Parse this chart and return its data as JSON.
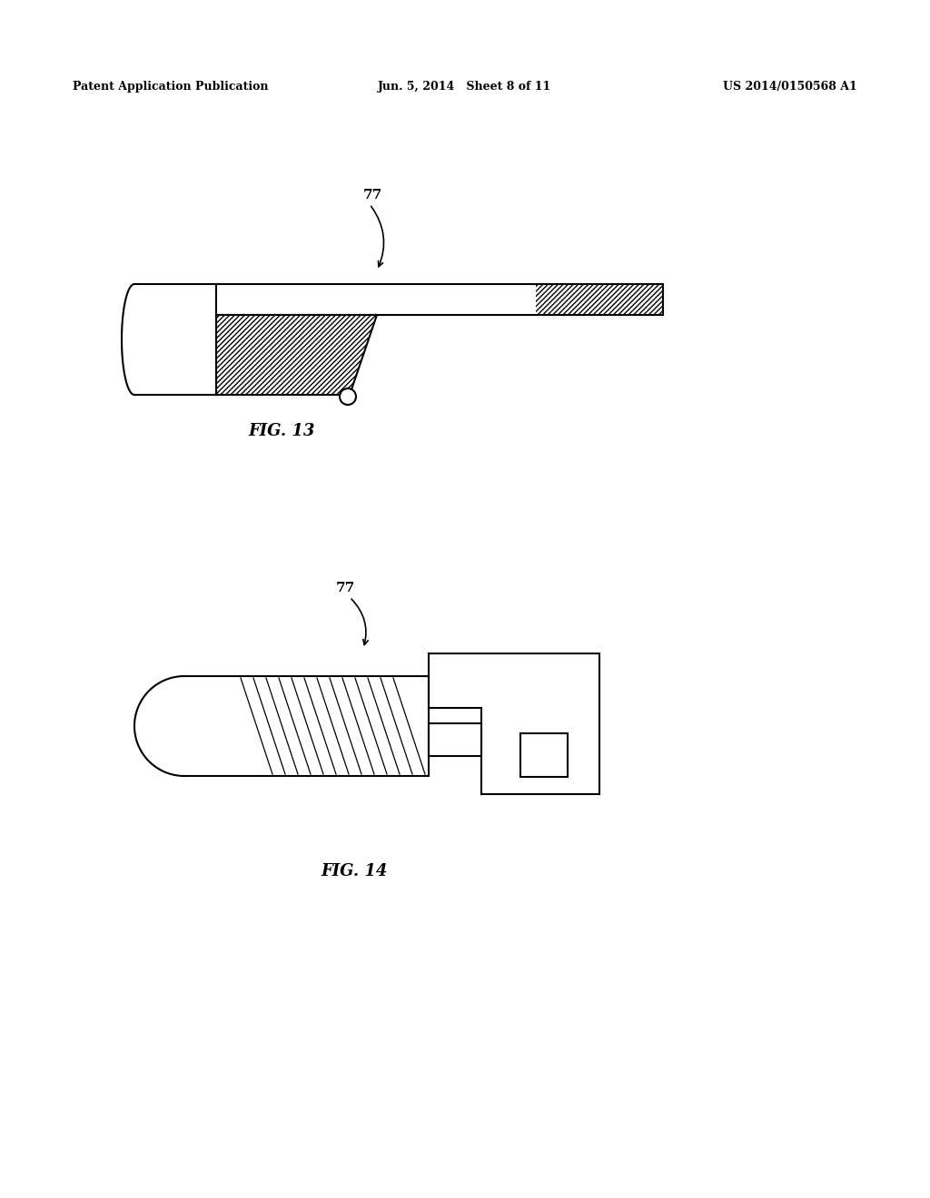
{
  "bg_color": "#ffffff",
  "line_color": "#000000",
  "header_left": "Patent Application Publication",
  "header_center": "Jun. 5, 2014   Sheet 8 of 11",
  "header_right": "US 2014/0150568 A1",
  "fig13_label": "FIG. 13",
  "fig14_label": "FIG. 14",
  "label_77": "77"
}
